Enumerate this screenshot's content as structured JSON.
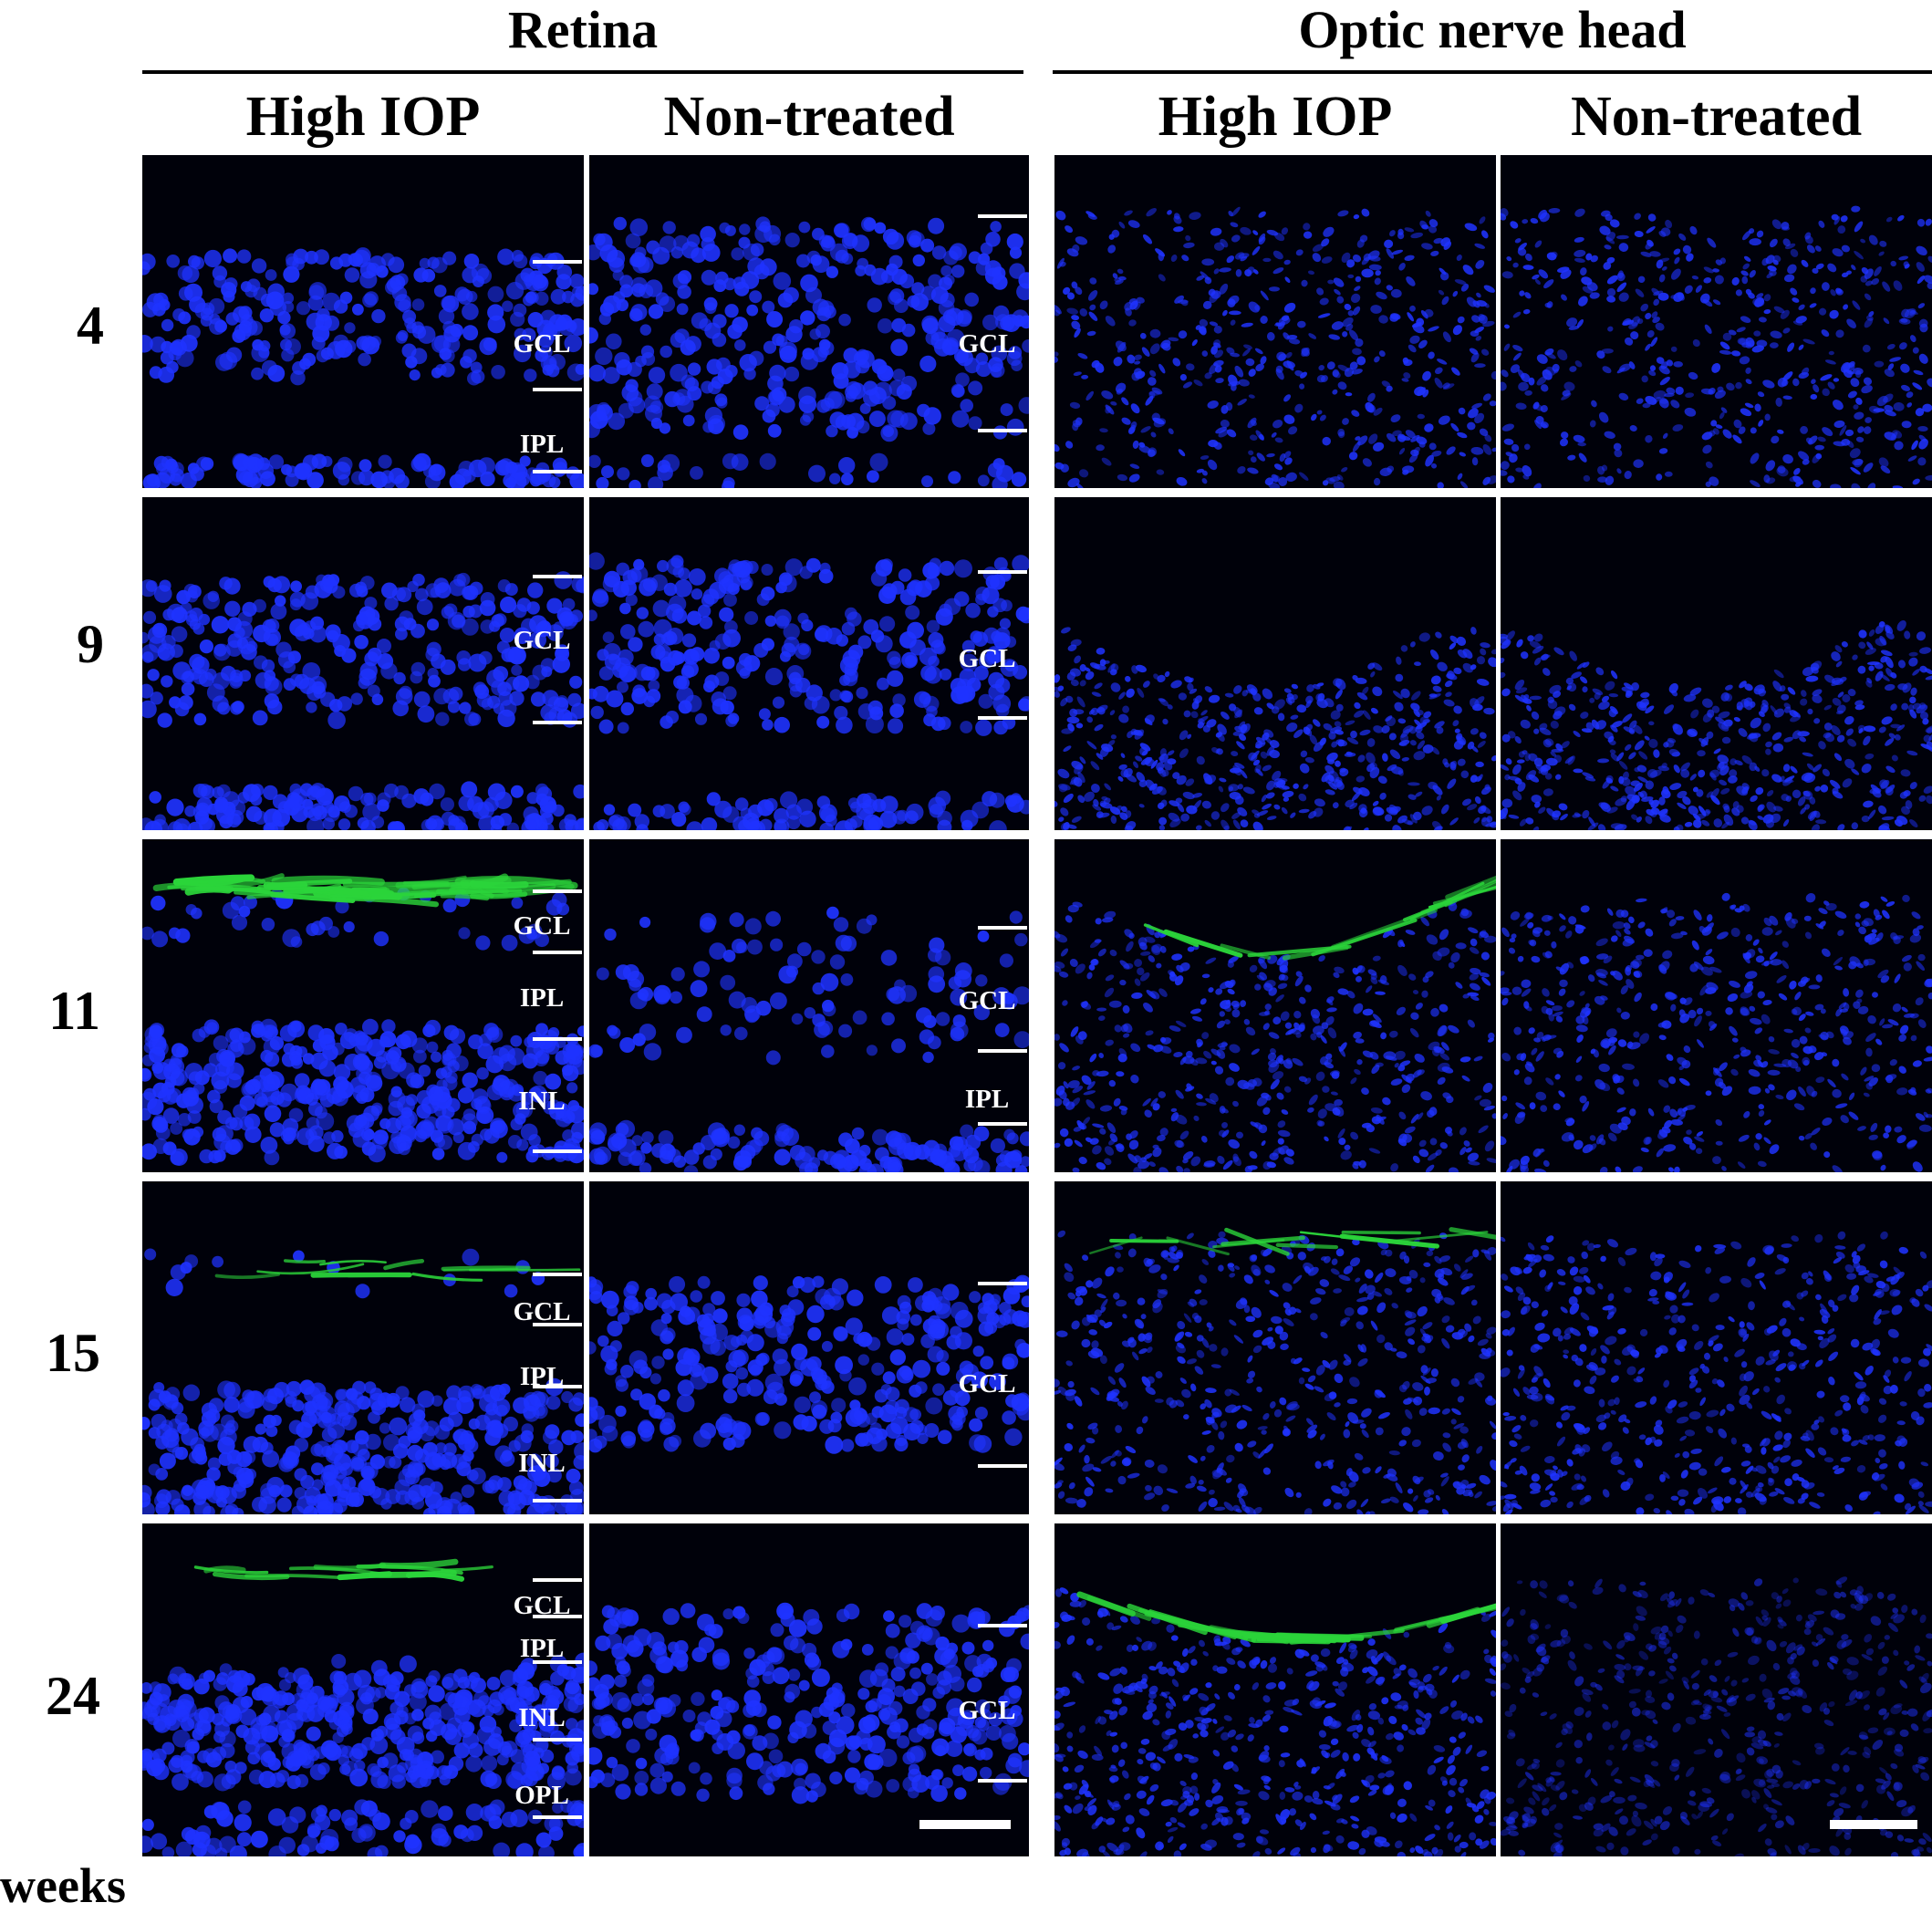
{
  "sections": {
    "retina": "Retina",
    "onh": "Optic nerve head"
  },
  "columns": {
    "high_iop": "High IOP",
    "non_treated": "Non-treated"
  },
  "weeks": [
    "4",
    "9",
    "11",
    "15",
    "24"
  ],
  "weeks_axis_label": "weeks",
  "layer_labels": {
    "gcl": "GCL",
    "ipl": "IPL",
    "inl": "INL",
    "opl": "OPL"
  },
  "colors": {
    "nuclei": "#1f33ff",
    "gfap": "#2bd43a",
    "background": "#00010a"
  }
}
